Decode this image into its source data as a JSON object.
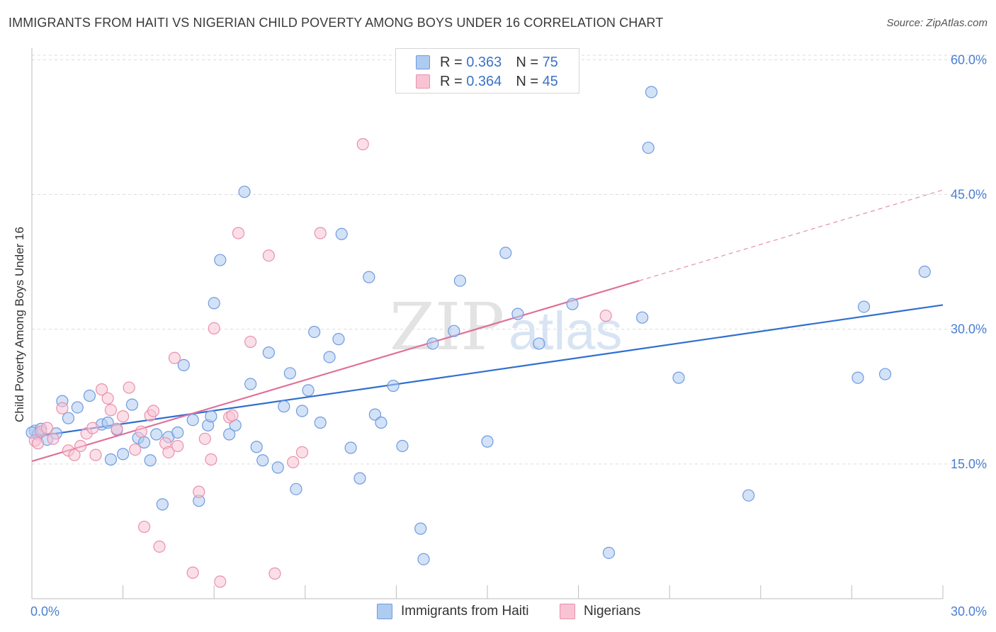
{
  "title": "IMMIGRANTS FROM HAITI VS NIGERIAN CHILD POVERTY AMONG BOYS UNDER 16 CORRELATION CHART",
  "source": "Source: ZipAtlas.com",
  "watermark": {
    "zip": "ZIP",
    "atlas": "atlas"
  },
  "legend": {
    "r_label": "R =",
    "n_label": "N =",
    "haiti": {
      "r": "0.363",
      "n": "75"
    },
    "nigerians": {
      "r": "0.364",
      "n": "45"
    }
  },
  "bottom_legend": {
    "haiti": "Immigrants from Haiti",
    "nigerians": "Nigerians"
  },
  "colors": {
    "haiti_fill": "#aecbf0",
    "haiti_stroke": "#6f9be0",
    "haiti_line": "#2f6fd0",
    "nig_fill": "#f8c4d4",
    "nig_stroke": "#e890ad",
    "nig_line": "#e0709a",
    "tick": "#4a7fd4",
    "grid": "#dcdcdc"
  },
  "chart_data": {
    "type": "scatter",
    "title": "IMMIGRANTS FROM HAITI VS NIGERIAN CHILD POVERTY AMONG BOYS UNDER 16 CORRELATION CHART",
    "xlabel": "",
    "ylabel": "Child Poverty Among Boys Under 16",
    "xlim": [
      0,
      30
    ],
    "ylim": [
      0,
      60.5
    ],
    "x_tick_labels": [
      "0.0%",
      "30.0%"
    ],
    "y_ticks": [
      15,
      30,
      45,
      60
    ],
    "y_tick_labels": [
      "15.0%",
      "30.0%",
      "45.0%",
      "60.0%"
    ],
    "series": [
      {
        "name": "Immigrants from Haiti",
        "r": 0.363,
        "n": 75,
        "trend": {
          "x0": 0,
          "y0": 18.0,
          "x1": 30,
          "y1": 32.7
        },
        "points": [
          [
            0.1,
            18.7
          ],
          [
            0.2,
            18.3
          ],
          [
            0.3,
            18.9
          ],
          [
            0.5,
            17.7
          ],
          [
            0.8,
            18.4
          ],
          [
            1.0,
            22.0
          ],
          [
            1.2,
            20.1
          ],
          [
            1.5,
            21.3
          ],
          [
            1.9,
            22.6
          ],
          [
            2.3,
            19.4
          ],
          [
            2.5,
            19.6
          ],
          [
            2.6,
            15.5
          ],
          [
            2.8,
            18.8
          ],
          [
            3.0,
            16.1
          ],
          [
            3.3,
            21.6
          ],
          [
            3.5,
            17.9
          ],
          [
            3.7,
            17.4
          ],
          [
            3.9,
            15.4
          ],
          [
            4.1,
            18.3
          ],
          [
            4.3,
            10.5
          ],
          [
            4.5,
            18.0
          ],
          [
            4.8,
            18.5
          ],
          [
            5.0,
            26.0
          ],
          [
            5.3,
            19.9
          ],
          [
            5.5,
            10.9
          ],
          [
            5.8,
            19.3
          ],
          [
            5.9,
            20.3
          ],
          [
            6.0,
            32.9
          ],
          [
            6.2,
            37.7
          ],
          [
            6.5,
            18.3
          ],
          [
            6.7,
            19.3
          ],
          [
            7.0,
            45.3
          ],
          [
            7.2,
            23.9
          ],
          [
            7.4,
            16.9
          ],
          [
            7.6,
            15.4
          ],
          [
            7.8,
            27.4
          ],
          [
            8.1,
            14.6
          ],
          [
            8.3,
            21.4
          ],
          [
            8.5,
            25.1
          ],
          [
            8.7,
            12.2
          ],
          [
            8.9,
            20.9
          ],
          [
            9.1,
            23.2
          ],
          [
            9.3,
            29.7
          ],
          [
            9.5,
            19.6
          ],
          [
            9.8,
            26.9
          ],
          [
            10.1,
            28.9
          ],
          [
            10.2,
            40.6
          ],
          [
            10.5,
            16.8
          ],
          [
            10.8,
            13.4
          ],
          [
            11.1,
            35.8
          ],
          [
            11.3,
            20.5
          ],
          [
            11.5,
            19.6
          ],
          [
            11.9,
            23.7
          ],
          [
            12.2,
            17.0
          ],
          [
            12.8,
            7.8
          ],
          [
            12.9,
            4.4
          ],
          [
            13.2,
            28.4
          ],
          [
            13.9,
            29.8
          ],
          [
            14.1,
            35.4
          ],
          [
            15.0,
            17.5
          ],
          [
            15.6,
            38.5
          ],
          [
            16.0,
            31.7
          ],
          [
            16.7,
            28.4
          ],
          [
            17.8,
            32.8
          ],
          [
            19.0,
            5.1
          ],
          [
            20.1,
            31.3
          ],
          [
            20.3,
            50.2
          ],
          [
            20.4,
            56.4
          ],
          [
            21.3,
            24.6
          ],
          [
            23.6,
            11.5
          ],
          [
            27.2,
            24.6
          ],
          [
            27.4,
            32.5
          ],
          [
            28.1,
            25.0
          ],
          [
            29.4,
            36.4
          ],
          [
            0.0,
            18.5
          ]
        ]
      },
      {
        "name": "Nigerians",
        "r": 0.364,
        "n": 45,
        "trend": {
          "x0": 0,
          "y0": 15.3,
          "x1": 20.0,
          "y1": 35.4,
          "dashed_to": {
            "x": 30,
            "y": 45.5
          }
        },
        "points": [
          [
            0.1,
            17.6
          ],
          [
            0.3,
            18.6
          ],
          [
            0.5,
            19.0
          ],
          [
            0.7,
            17.8
          ],
          [
            1.0,
            21.2
          ],
          [
            1.2,
            16.5
          ],
          [
            1.4,
            16.0
          ],
          [
            1.6,
            17.0
          ],
          [
            1.8,
            18.4
          ],
          [
            2.0,
            19.0
          ],
          [
            2.1,
            16.0
          ],
          [
            2.3,
            23.3
          ],
          [
            2.5,
            22.3
          ],
          [
            2.6,
            21.0
          ],
          [
            2.8,
            18.9
          ],
          [
            3.0,
            20.3
          ],
          [
            3.2,
            23.5
          ],
          [
            3.4,
            16.6
          ],
          [
            3.6,
            18.6
          ],
          [
            3.7,
            8.0
          ],
          [
            3.9,
            20.4
          ],
          [
            4.0,
            20.9
          ],
          [
            4.2,
            5.8
          ],
          [
            4.4,
            17.3
          ],
          [
            4.5,
            16.3
          ],
          [
            4.7,
            26.8
          ],
          [
            4.8,
            17.0
          ],
          [
            5.3,
            2.9
          ],
          [
            5.5,
            11.9
          ],
          [
            5.7,
            17.8
          ],
          [
            5.9,
            15.5
          ],
          [
            6.0,
            30.1
          ],
          [
            6.2,
            1.9
          ],
          [
            6.5,
            20.2
          ],
          [
            6.6,
            20.4
          ],
          [
            6.8,
            40.7
          ],
          [
            7.2,
            28.6
          ],
          [
            7.8,
            38.2
          ],
          [
            8.0,
            2.8
          ],
          [
            8.6,
            15.2
          ],
          [
            8.9,
            16.3
          ],
          [
            9.5,
            40.7
          ],
          [
            10.9,
            50.6
          ],
          [
            18.9,
            31.5
          ],
          [
            0.2,
            17.3
          ]
        ]
      }
    ]
  }
}
